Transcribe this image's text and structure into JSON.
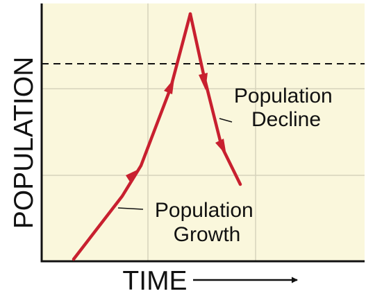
{
  "diagram": {
    "y_axis_label": "POPULATION",
    "x_axis_label": "TIME",
    "growth_label": [
      "Population",
      "Growth"
    ],
    "decline_label": [
      "Population",
      "Decline"
    ],
    "colors": {
      "plot_background": "#faf7dc",
      "grid": "#d6d3bb",
      "frame": "#111111",
      "curve": "#c8202f",
      "threshold_line": "#111111"
    }
  }
}
